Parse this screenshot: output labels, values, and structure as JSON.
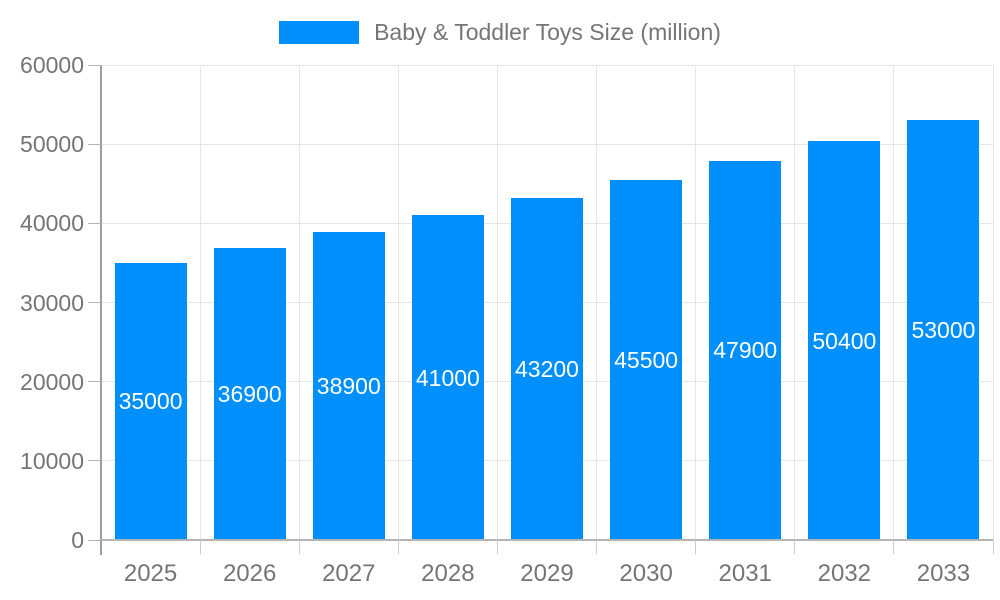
{
  "legend": {
    "label": "Baby & Toddler Toys Size (million)"
  },
  "chart_data": {
    "type": "bar",
    "title": "Baby & Toddler Toys Size (million)",
    "categories": [
      "2025",
      "2026",
      "2027",
      "2028",
      "2029",
      "2030",
      "2031",
      "2032",
      "2033"
    ],
    "values": [
      35000,
      36900,
      38900,
      41000,
      43200,
      45500,
      47900,
      50400,
      53000
    ],
    "value_labels": [
      "35000",
      "36900",
      "38900",
      "41000",
      "43200",
      "45500",
      "47900",
      "50400",
      "53000"
    ],
    "xlabel": "",
    "ylabel": "",
    "ylim": [
      0,
      60000
    ],
    "ytick_step": 10000,
    "ytick_labels": [
      "0",
      "10000",
      "20000",
      "30000",
      "40000",
      "50000",
      "60000"
    ],
    "grid": true,
    "legend_position": "top-center",
    "colors": {
      "bar": "#008ffb",
      "value_label": "#ffffff",
      "axis_label": "#757575",
      "legend_text": "#757575",
      "grid_line": "#e6e6e6",
      "axis_line": "#b3b3b3",
      "y_axis_line": "#9e9e9e"
    }
  }
}
